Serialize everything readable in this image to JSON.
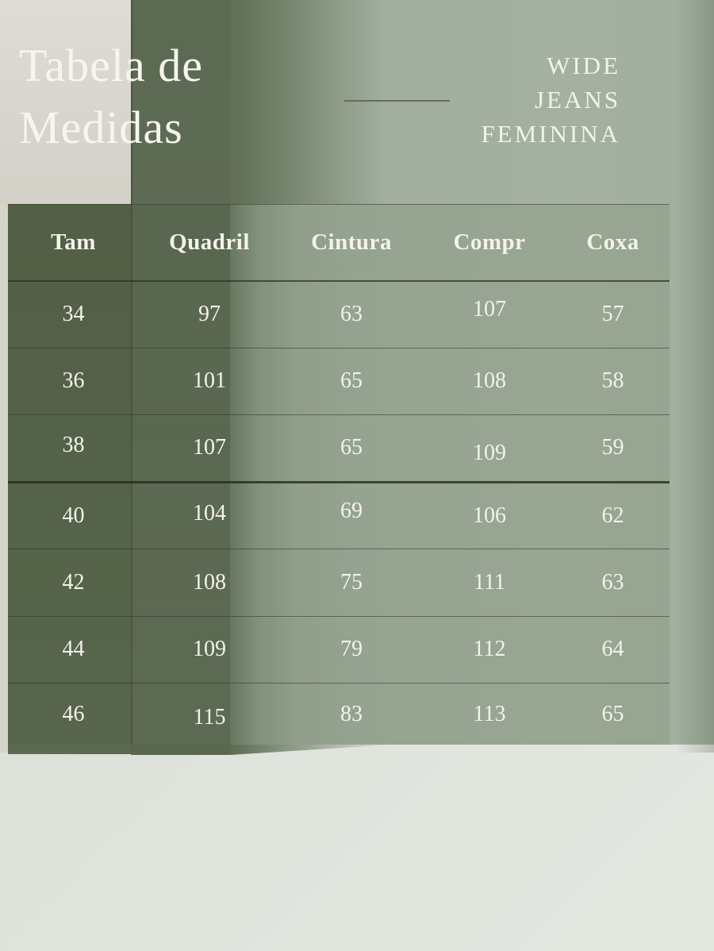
{
  "header": {
    "title_line1": "Tabela de",
    "title_line2": "Medidas",
    "subtitle_line1": "WIDE",
    "subtitle_line2": "JEANS",
    "subtitle_line3": "FEMININA"
  },
  "table": {
    "headers": [
      "Tam",
      "Quadril",
      "Cintura",
      "Compr",
      "Coxa"
    ],
    "rows": [
      [
        "34",
        "97",
        "63",
        "107",
        "57"
      ],
      [
        "36",
        "101",
        "65",
        "108",
        "58"
      ],
      [
        "38",
        "107",
        "65",
        "109",
        "59"
      ],
      [
        "40",
        "104",
        "69",
        "106",
        "62"
      ],
      [
        "42",
        "108",
        "75",
        "111",
        "63"
      ],
      [
        "44",
        "109",
        "79",
        "112",
        "64"
      ],
      [
        "46",
        "115",
        "83",
        "113",
        "65"
      ]
    ]
  },
  "colors": {
    "wall-green": "#9dab99",
    "wall-shadow-green": "#6f7d67",
    "column-green": "#5e6b55",
    "panel-gray": "#d6d4cb",
    "floor": "#dde2da",
    "text": "#f4f2ea"
  }
}
